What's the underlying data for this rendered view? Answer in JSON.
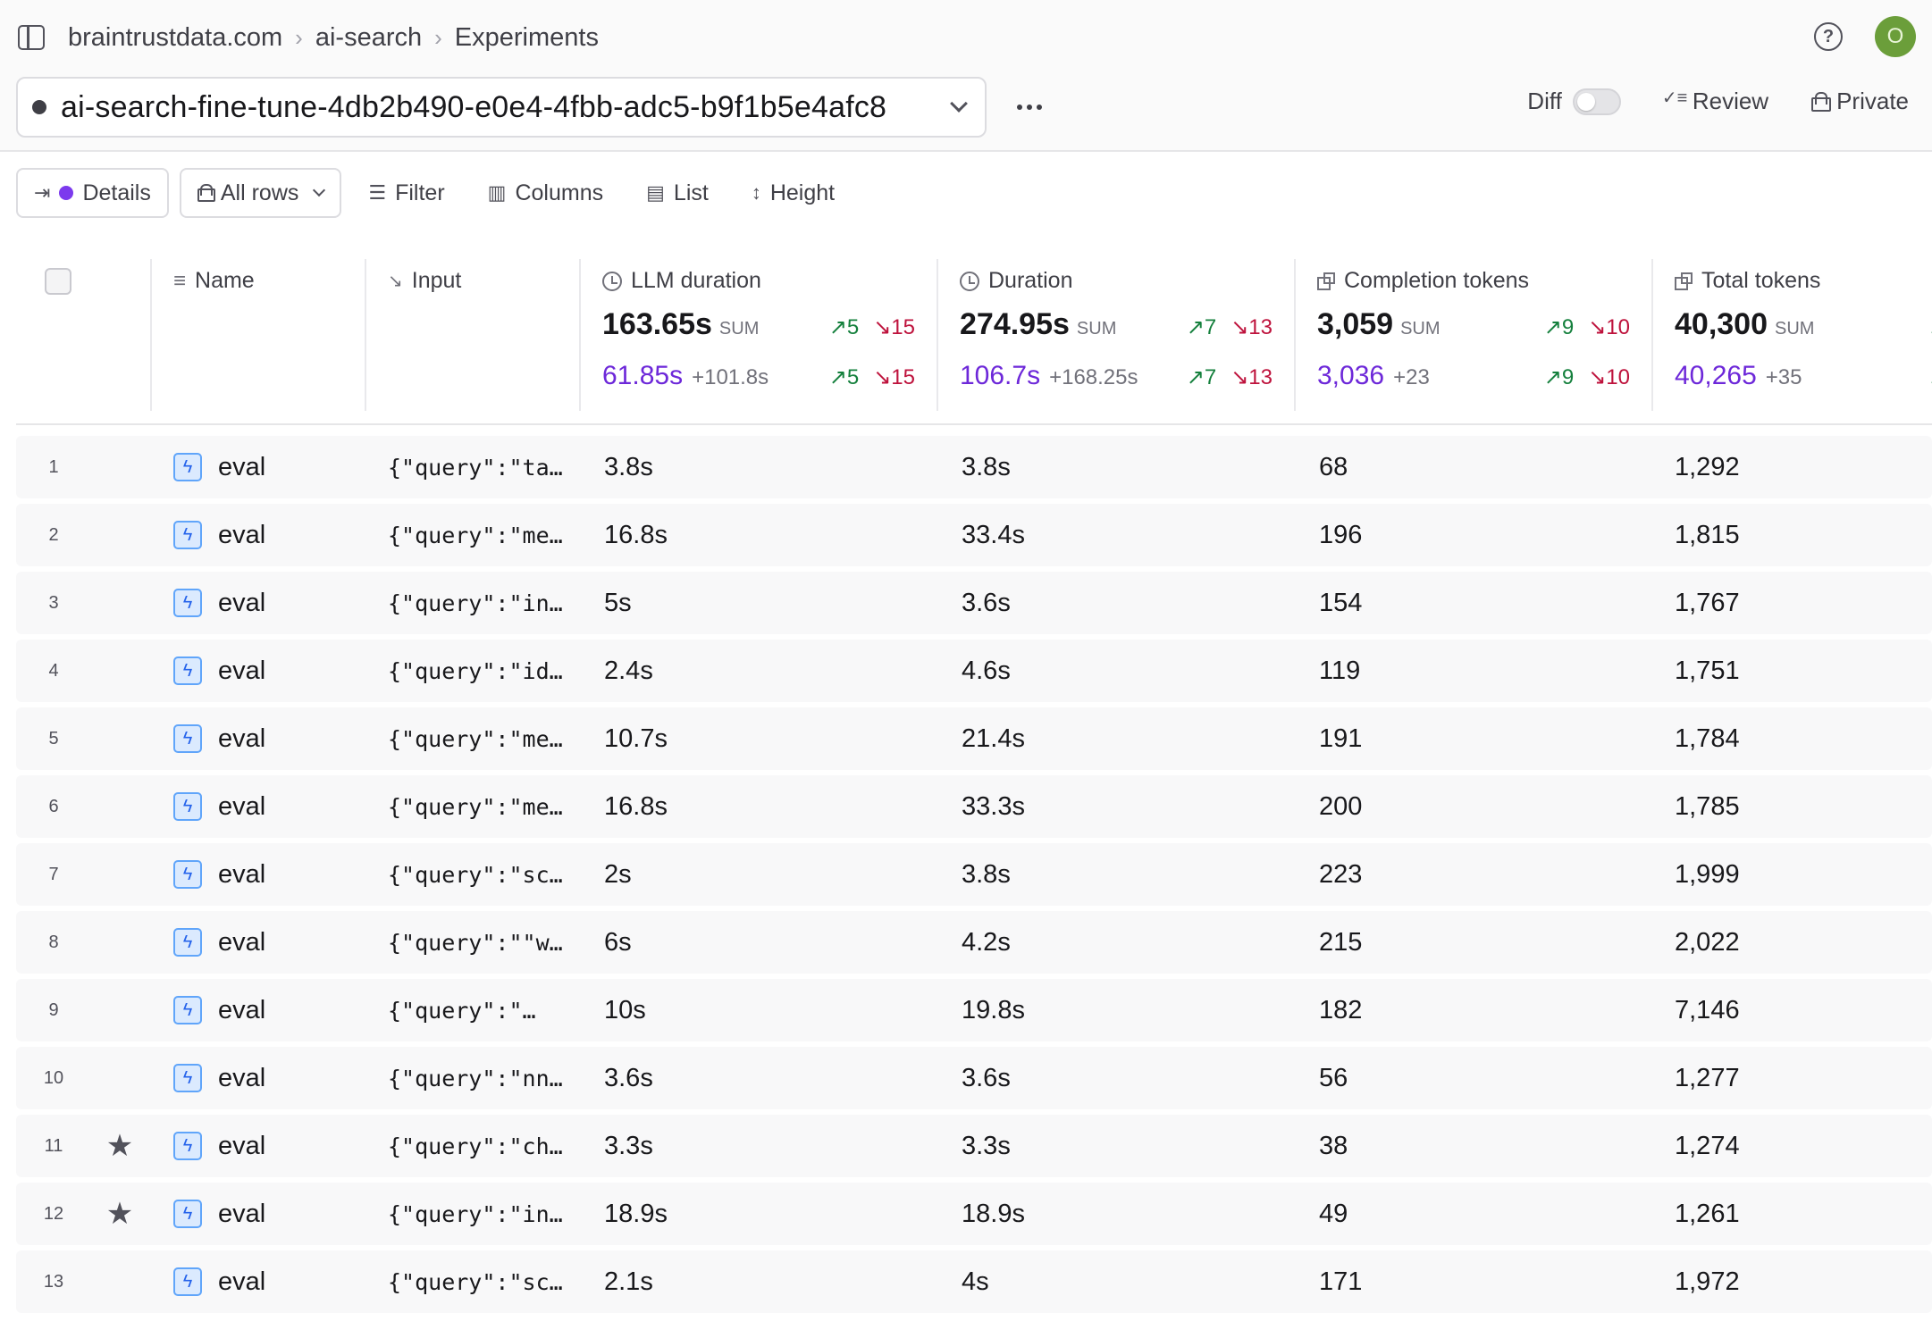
{
  "breadcrumb": [
    "braintrustdata.com",
    "ai-search",
    "Experiments"
  ],
  "user": {
    "avatar_initial": "O",
    "avatar_color": "#6b9e3a"
  },
  "experiment": {
    "name": "ai-search-fine-tune-4db2b490-e0e4-4fbb-adc5-b9f1b5e4afc8"
  },
  "header_tools": {
    "diff_label": "Diff",
    "diff_on": false,
    "review_label": "Review",
    "private_label": "Private"
  },
  "toolbar": {
    "details": "Details",
    "rows": "All rows",
    "filter": "Filter",
    "columns": "Columns",
    "list": "List",
    "height": "Height"
  },
  "columns": {
    "name": "Name",
    "input": "Input",
    "llm_duration": {
      "label": "LLM duration",
      "sum": "163.65s",
      "sum_label": "SUM",
      "up": "5",
      "down": "15",
      "compare": "61.85s",
      "delta": "+101.8s",
      "compare_up": "5",
      "compare_down": "15"
    },
    "duration": {
      "label": "Duration",
      "sum": "274.95s",
      "sum_label": "SUM",
      "up": "7",
      "down": "13",
      "compare": "106.7s",
      "delta": "+168.25s",
      "compare_up": "7",
      "compare_down": "13"
    },
    "completion_tokens": {
      "label": "Completion tokens",
      "sum": "3,059",
      "sum_label": "SUM",
      "up": "9",
      "down": "10",
      "compare": "3,036",
      "delta": "+23",
      "compare_up": "9",
      "compare_down": "10"
    },
    "total_tokens": {
      "label": "Total tokens",
      "sum": "40,300",
      "sum_label": "SUM",
      "compare": "40,265",
      "delta": "+35"
    }
  },
  "rows": [
    {
      "n": "1",
      "starred": false,
      "name": "eval",
      "input": "{\"query\":\"ta…",
      "llm": "3.8s",
      "dur": "3.8s",
      "comp": "68",
      "total": "1,292"
    },
    {
      "n": "2",
      "starred": false,
      "name": "eval",
      "input": "{\"query\":\"me…",
      "llm": "16.8s",
      "dur": "33.4s",
      "comp": "196",
      "total": "1,815"
    },
    {
      "n": "3",
      "starred": false,
      "name": "eval",
      "input": "{\"query\":\"in…",
      "llm": "5s",
      "dur": "3.6s",
      "comp": "154",
      "total": "1,767"
    },
    {
      "n": "4",
      "starred": false,
      "name": "eval",
      "input": "{\"query\":\"id…",
      "llm": "2.4s",
      "dur": "4.6s",
      "comp": "119",
      "total": "1,751"
    },
    {
      "n": "5",
      "starred": false,
      "name": "eval",
      "input": "{\"query\":\"me…",
      "llm": "10.7s",
      "dur": "21.4s",
      "comp": "191",
      "total": "1,784"
    },
    {
      "n": "6",
      "starred": false,
      "name": "eval",
      "input": "{\"query\":\"me…",
      "llm": "16.8s",
      "dur": "33.3s",
      "comp": "200",
      "total": "1,785"
    },
    {
      "n": "7",
      "starred": false,
      "name": "eval",
      "input": "{\"query\":\"sc…",
      "llm": "2s",
      "dur": "3.8s",
      "comp": "223",
      "total": "1,999"
    },
    {
      "n": "8",
      "starred": false,
      "name": "eval",
      "input": "{\"query\":\"\"w…",
      "llm": "6s",
      "dur": "4.2s",
      "comp": "215",
      "total": "2,022"
    },
    {
      "n": "9",
      "starred": false,
      "name": "eval",
      "input": "{\"query\":\"…",
      "llm": "10s",
      "dur": "19.8s",
      "comp": "182",
      "total": "7,146"
    },
    {
      "n": "10",
      "starred": false,
      "name": "eval",
      "input": "{\"query\":\"nn…",
      "llm": "3.6s",
      "dur": "3.6s",
      "comp": "56",
      "total": "1,277"
    },
    {
      "n": "11",
      "starred": true,
      "name": "eval",
      "input": "{\"query\":\"ch…",
      "llm": "3.3s",
      "dur": "3.3s",
      "comp": "38",
      "total": "1,274"
    },
    {
      "n": "12",
      "starred": true,
      "name": "eval",
      "input": "{\"query\":\"in…",
      "llm": "18.9s",
      "dur": "18.9s",
      "comp": "49",
      "total": "1,261"
    },
    {
      "n": "13",
      "starred": false,
      "name": "eval",
      "input": "{\"query\":\"sc…",
      "llm": "2.1s",
      "dur": "4s",
      "comp": "171",
      "total": "1,972"
    }
  ]
}
